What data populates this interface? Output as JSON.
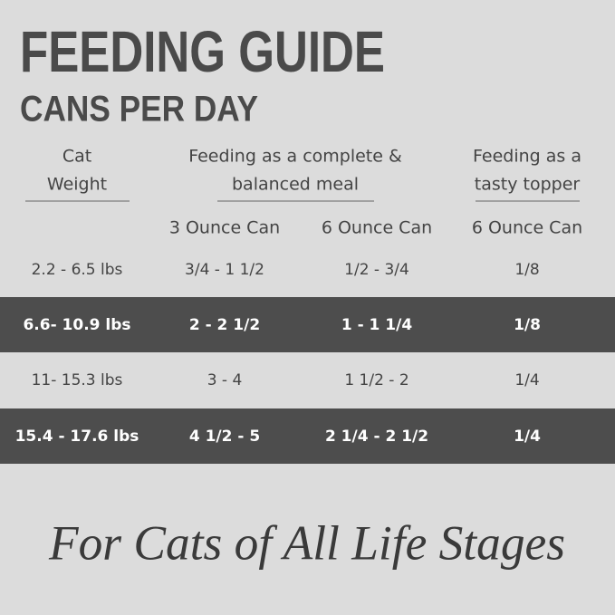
{
  "header": {
    "title": "FEEDING GUIDE",
    "subtitle": "CANS PER DAY"
  },
  "table": {
    "header_groups": [
      {
        "lines": [
          "Cat",
          "Weight"
        ]
      },
      {
        "lines": [
          "Feeding as a complete &",
          "balanced meal"
        ]
      },
      {
        "lines": [
          "Feeding as a",
          "tasty topper"
        ]
      }
    ],
    "subheaders": [
      "3 Ounce Can",
      "6 Ounce Can",
      "6 Ounce Can"
    ],
    "rows": [
      [
        "2.2 - 6.5 lbs",
        "3/4 - 1 1/2",
        "1/2 - 3/4",
        "1/8"
      ],
      [
        "6.6- 10.9 lbs",
        "2 - 2 1/2",
        "1 - 1 1/4",
        "1/8"
      ],
      [
        "11- 15.3 lbs",
        "3 - 4",
        "1 1/2 - 2",
        "1/4"
      ],
      [
        "15.4 - 17.6 lbs",
        "4 1/2 - 5",
        "2 1/4 - 2 1/2",
        "1/4"
      ]
    ]
  },
  "footer": {
    "tagline": "For Cats of All Life Stages"
  }
}
